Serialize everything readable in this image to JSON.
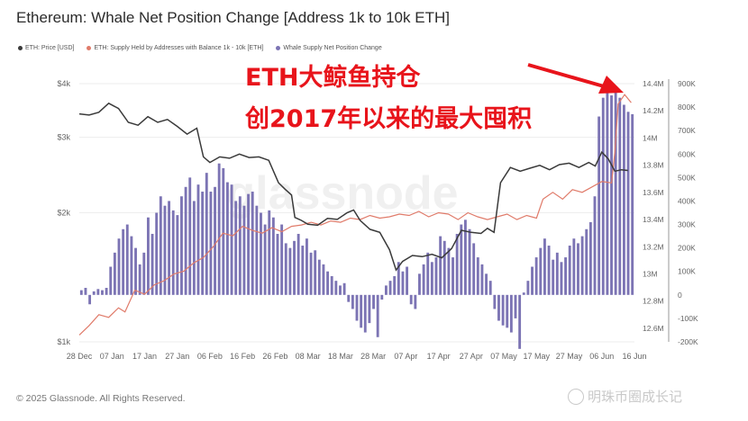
{
  "header": {
    "title": "Ethereum: Whale Net Position Change [Address 1k to 10k ETH]"
  },
  "footer": {
    "copyright": "© 2025 Glassnode. All Rights Reserved.",
    "watermark": "明珠币圈成长记"
  },
  "background_watermark": "glassnode",
  "annotation": {
    "line1": "ETH大鲸鱼持仓",
    "line2": "创2017年以来的最大囤积"
  },
  "colors": {
    "price": "#3a3a3a",
    "supply": "#e07b6a",
    "net_change": "#7c74b4",
    "annotation": "#e8141b",
    "grid": "#eeeeee"
  },
  "chart_data": {
    "type": "bar",
    "x_tick_labels": [
      "28 Dec",
      "07 Jan",
      "17 Jan",
      "27 Jan",
      "06 Feb",
      "16 Feb",
      "26 Feb",
      "08 Mar",
      "18 Mar",
      "28 Mar",
      "07 Apr",
      "17 Apr",
      "27 Apr",
      "07 May",
      "17 May",
      "27 May",
      "06 Jun",
      "16 Jun"
    ],
    "x_range_days": [
      0,
      170
    ],
    "left_axis": {
      "scale": "log",
      "ticks": [
        "$1k",
        "$2k",
        "$3k",
        "$4k"
      ],
      "tick_values": [
        1000,
        2000,
        3000,
        4000
      ],
      "range": [
        1000,
        4000
      ]
    },
    "right_axis_1": {
      "ticks": [
        "12.6M",
        "12.8M",
        "13M",
        "13.2M",
        "13.4M",
        "13.6M",
        "13.8M",
        "14M",
        "14.2M",
        "14.4M"
      ],
      "tick_values": [
        12.6,
        12.8,
        13.0,
        13.2,
        13.4,
        13.6,
        13.8,
        14.0,
        14.2,
        14.4
      ],
      "range": [
        12.5,
        14.4
      ],
      "unit": "M"
    },
    "right_axis_2": {
      "ticks": [
        "-200K",
        "-100K",
        "0",
        "100K",
        "200K",
        "300K",
        "400K",
        "500K",
        "600K",
        "700K",
        "800K",
        "900K"
      ],
      "tick_values": [
        -200,
        -100,
        0,
        100,
        200,
        300,
        400,
        500,
        600,
        700,
        800,
        900
      ],
      "range": [
        -200,
        900
      ],
      "unit": "K"
    },
    "series": [
      {
        "name": "ETH: Price [USD]",
        "type": "line",
        "axis": "left",
        "points": [
          [
            0,
            3400
          ],
          [
            3,
            3380
          ],
          [
            6,
            3430
          ],
          [
            9,
            3600
          ],
          [
            12,
            3500
          ],
          [
            15,
            3250
          ],
          [
            18,
            3200
          ],
          [
            21,
            3350
          ],
          [
            24,
            3250
          ],
          [
            27,
            3300
          ],
          [
            30,
            3180
          ],
          [
            33,
            3050
          ],
          [
            36,
            3150
          ],
          [
            38,
            2700
          ],
          [
            40,
            2620
          ],
          [
            43,
            2700
          ],
          [
            46,
            2680
          ],
          [
            49,
            2740
          ],
          [
            52,
            2690
          ],
          [
            55,
            2700
          ],
          [
            58,
            2650
          ],
          [
            61,
            2350
          ],
          [
            63,
            2270
          ],
          [
            65,
            2200
          ],
          [
            66,
            1950
          ],
          [
            68,
            1920
          ],
          [
            70,
            1880
          ],
          [
            73,
            1870
          ],
          [
            76,
            1940
          ],
          [
            79,
            1930
          ],
          [
            82,
            2000
          ],
          [
            84,
            2030
          ],
          [
            86,
            1920
          ],
          [
            89,
            1830
          ],
          [
            92,
            1800
          ],
          [
            95,
            1640
          ],
          [
            97,
            1470
          ],
          [
            99,
            1540
          ],
          [
            102,
            1590
          ],
          [
            105,
            1580
          ],
          [
            108,
            1600
          ],
          [
            111,
            1570
          ],
          [
            114,
            1650
          ],
          [
            117,
            1820
          ],
          [
            120,
            1800
          ],
          [
            123,
            1790
          ],
          [
            125,
            1840
          ],
          [
            127,
            1800
          ],
          [
            129,
            2350
          ],
          [
            132,
            2550
          ],
          [
            135,
            2500
          ],
          [
            138,
            2540
          ],
          [
            141,
            2580
          ],
          [
            144,
            2520
          ],
          [
            147,
            2590
          ],
          [
            150,
            2610
          ],
          [
            153,
            2550
          ],
          [
            156,
            2620
          ],
          [
            158,
            2570
          ],
          [
            160,
            2770
          ],
          [
            162,
            2670
          ],
          [
            164,
            2500
          ],
          [
            166,
            2520
          ],
          [
            168,
            2510
          ]
        ]
      },
      {
        "name": "ETH: Supply Held by Addresses with Balance 1k - 10k [ETH]",
        "type": "line",
        "axis": "right_1",
        "points": [
          [
            0,
            12.55
          ],
          [
            3,
            12.62
          ],
          [
            6,
            12.7
          ],
          [
            9,
            12.68
          ],
          [
            12,
            12.75
          ],
          [
            14,
            12.72
          ],
          [
            17,
            12.88
          ],
          [
            20,
            12.85
          ],
          [
            23,
            12.92
          ],
          [
            26,
            12.95
          ],
          [
            29,
            13.0
          ],
          [
            32,
            13.02
          ],
          [
            35,
            13.08
          ],
          [
            38,
            13.12
          ],
          [
            41,
            13.2
          ],
          [
            44,
            13.3
          ],
          [
            47,
            13.28
          ],
          [
            50,
            13.35
          ],
          [
            53,
            13.32
          ],
          [
            56,
            13.3
          ],
          [
            59,
            13.34
          ],
          [
            62,
            13.31
          ],
          [
            65,
            13.35
          ],
          [
            68,
            13.36
          ],
          [
            71,
            13.38
          ],
          [
            74,
            13.36
          ],
          [
            77,
            13.39
          ],
          [
            80,
            13.38
          ],
          [
            83,
            13.41
          ],
          [
            86,
            13.4
          ],
          [
            89,
            13.43
          ],
          [
            92,
            13.41
          ],
          [
            95,
            13.42
          ],
          [
            98,
            13.44
          ],
          [
            101,
            13.43
          ],
          [
            104,
            13.46
          ],
          [
            107,
            13.42
          ],
          [
            110,
            13.45
          ],
          [
            113,
            13.44
          ],
          [
            116,
            13.4
          ],
          [
            119,
            13.45
          ],
          [
            122,
            13.42
          ],
          [
            125,
            13.4
          ],
          [
            128,
            13.42
          ],
          [
            131,
            13.44
          ],
          [
            134,
            13.4
          ],
          [
            137,
            13.43
          ],
          [
            140,
            13.41
          ],
          [
            142,
            13.55
          ],
          [
            145,
            13.6
          ],
          [
            148,
            13.55
          ],
          [
            151,
            13.62
          ],
          [
            154,
            13.6
          ],
          [
            157,
            13.64
          ],
          [
            160,
            13.68
          ],
          [
            163,
            13.67
          ],
          [
            164,
            13.9
          ],
          [
            165,
            14.25
          ],
          [
            167,
            14.32
          ],
          [
            169,
            14.26
          ]
        ]
      },
      {
        "name": "Whale Supply Net Position Change",
        "type": "bar",
        "axis": "right_2",
        "values": [
          20,
          30,
          -40,
          15,
          25,
          20,
          30,
          120,
          180,
          240,
          280,
          300,
          250,
          200,
          130,
          180,
          330,
          260,
          350,
          420,
          380,
          400,
          360,
          340,
          420,
          460,
          500,
          400,
          470,
          440,
          520,
          440,
          460,
          560,
          540,
          480,
          470,
          400,
          420,
          380,
          430,
          440,
          380,
          350,
          300,
          360,
          330,
          260,
          300,
          220,
          200,
          230,
          260,
          210,
          240,
          180,
          190,
          150,
          130,
          100,
          80,
          60,
          40,
          50,
          -30,
          -60,
          -110,
          -140,
          -160,
          -120,
          -60,
          -180,
          -20,
          40,
          60,
          80,
          140,
          100,
          120,
          -40,
          -60,
          90,
          130,
          180,
          140,
          160,
          250,
          230,
          200,
          160,
          260,
          300,
          320,
          280,
          220,
          160,
          130,
          90,
          60,
          -60,
          -110,
          -130,
          -140,
          -160,
          -100,
          -230,
          10,
          60,
          120,
          160,
          200,
          240,
          210,
          150,
          180,
          140,
          160,
          210,
          240,
          220,
          250,
          280,
          310,
          420,
          760,
          840,
          860,
          850,
          870,
          840,
          810,
          780,
          770
        ]
      }
    ]
  }
}
